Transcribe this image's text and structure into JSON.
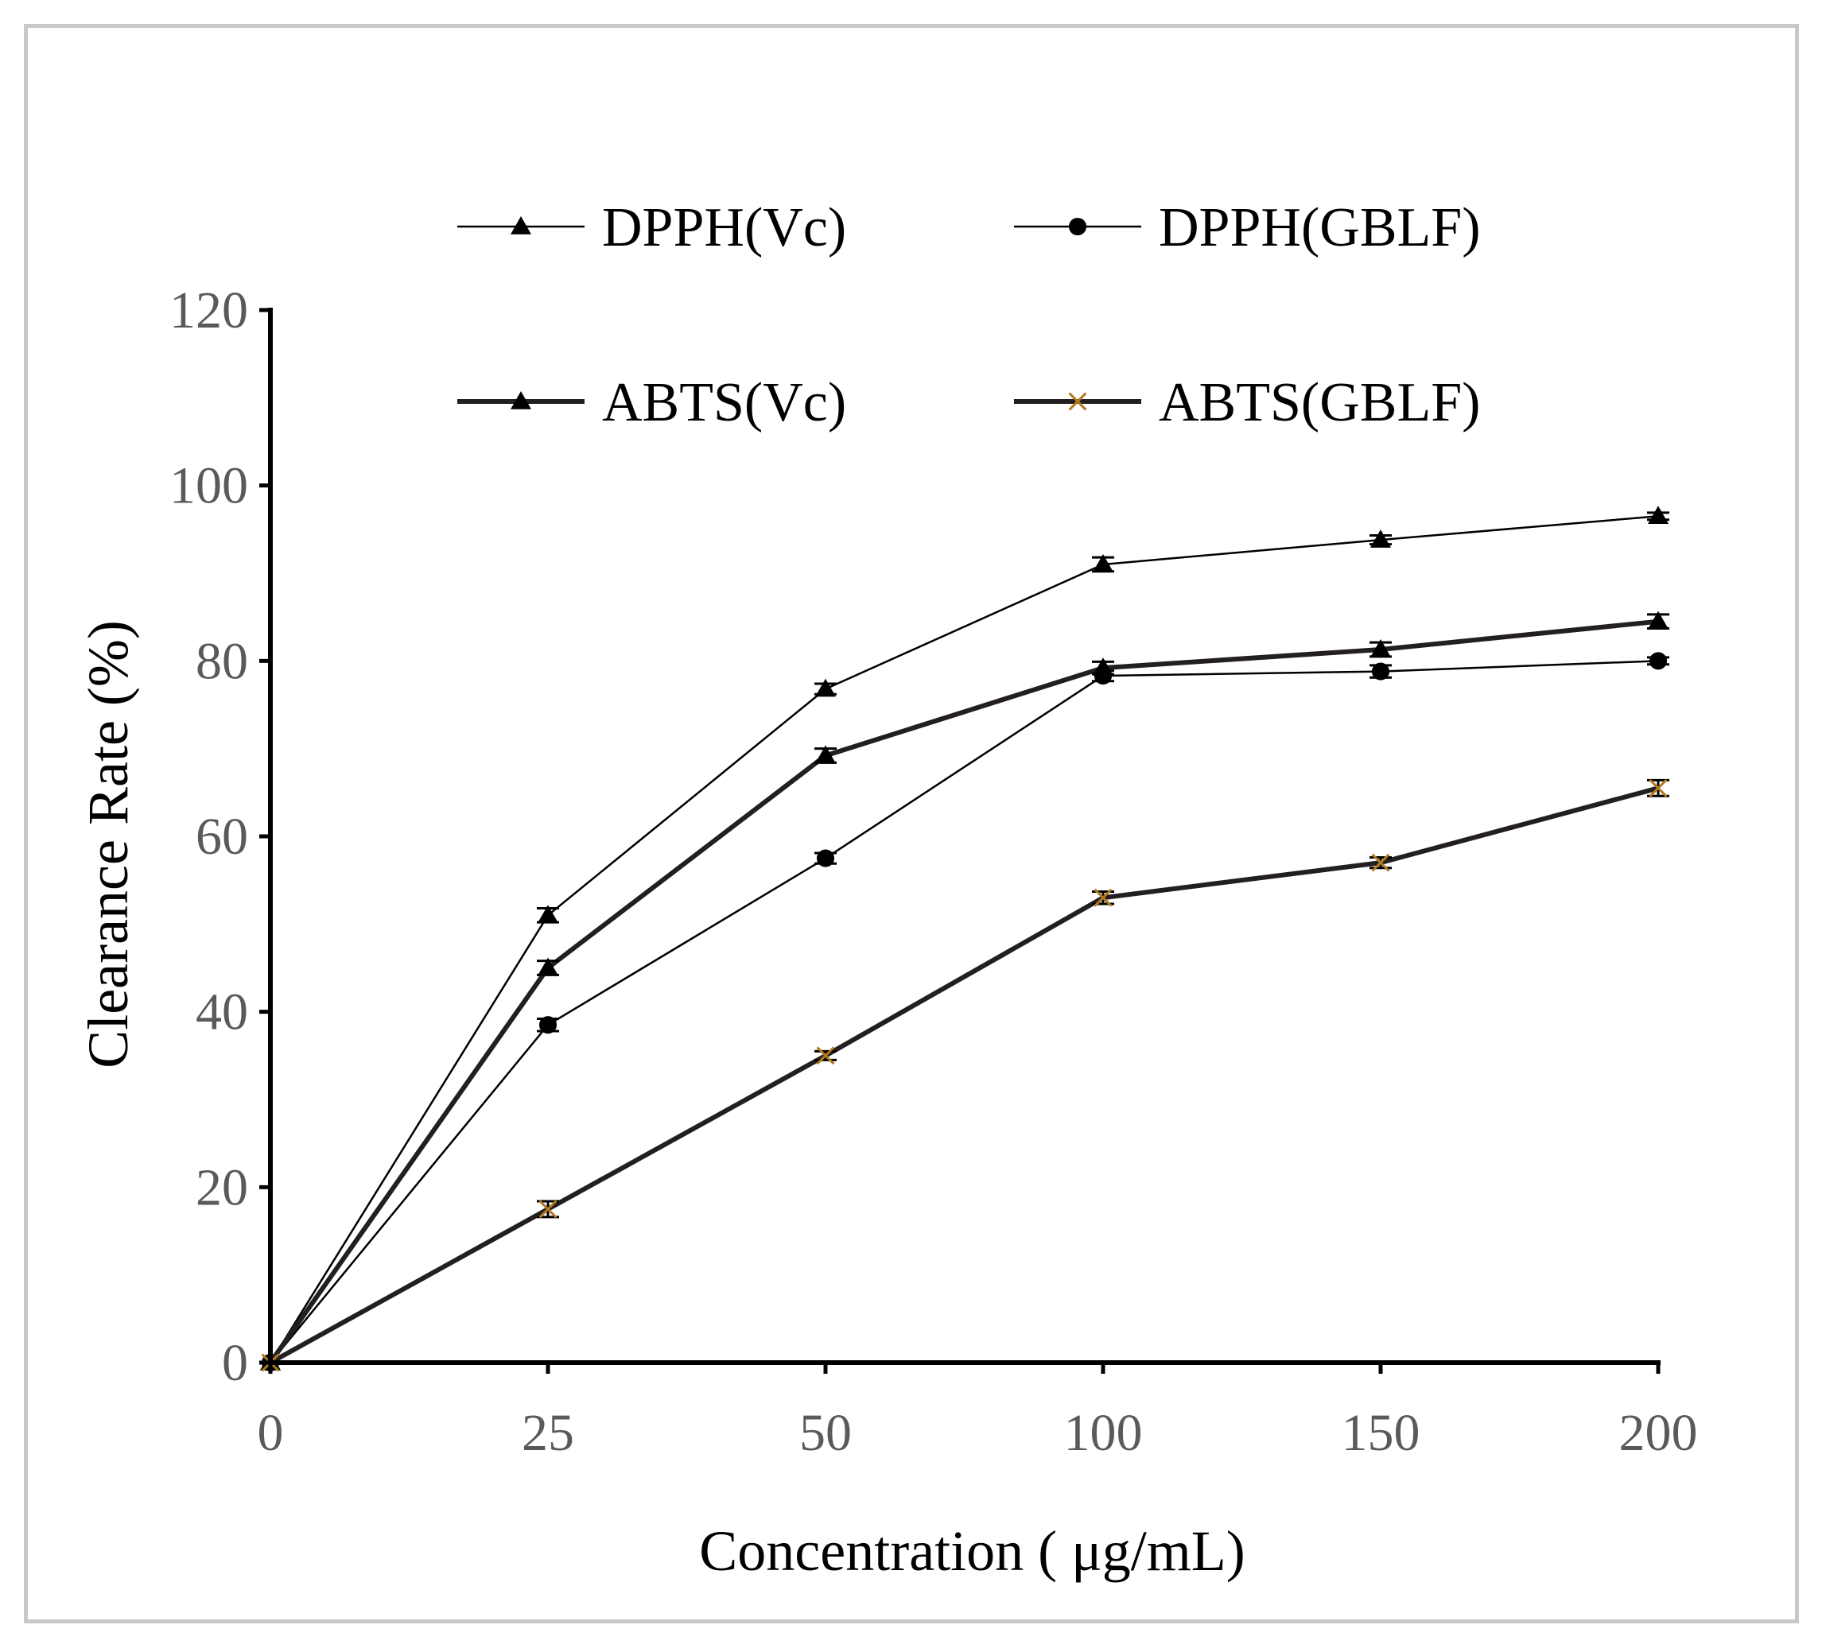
{
  "chart_data": {
    "type": "line",
    "title": "",
    "xlabel": "Concentration ( μg/mL)",
    "ylabel": "Clearance Rate (%)",
    "categories": [
      "0",
      "25",
      "50",
      "100",
      "150",
      "200"
    ],
    "ylim": [
      0,
      120
    ],
    "yticks": [
      "0",
      "20",
      "40",
      "60",
      "80",
      "100",
      "120"
    ],
    "grid": false,
    "legend_position": "top",
    "series": [
      {
        "name": "DPPH(Vc)",
        "marker": "triangle",
        "weight": "thin",
        "color": "#000000",
        "values": [
          0,
          51,
          76.8,
          91,
          93.8,
          96.5
        ],
        "errors": [
          0,
          0.8,
          0.6,
          0.8,
          0.5,
          0.4
        ]
      },
      {
        "name": "DPPH(GBLF)",
        "marker": "circle",
        "weight": "thin",
        "color": "#000000",
        "values": [
          0,
          38.5,
          57.5,
          78.3,
          78.8,
          80
        ],
        "errors": [
          0,
          0.7,
          0.6,
          0.6,
          0.7,
          0.4
        ]
      },
      {
        "name": "ABTS(Vc)",
        "marker": "triangle",
        "weight": "thick",
        "color": "#231f20",
        "values": [
          0,
          45,
          69.2,
          79.2,
          81.3,
          84.5
        ],
        "errors": [
          0,
          0.8,
          0.8,
          0.7,
          0.8,
          0.8
        ]
      },
      {
        "name": "ABTS(GBLF)",
        "marker": "x",
        "weight": "thick",
        "color": "#231f20",
        "marker_color": "#b07a1e",
        "values": [
          0,
          17.5,
          35,
          53,
          57,
          65.5
        ],
        "errors": [
          0,
          0.9,
          0.5,
          0.7,
          0.6,
          0.9
        ]
      }
    ]
  }
}
